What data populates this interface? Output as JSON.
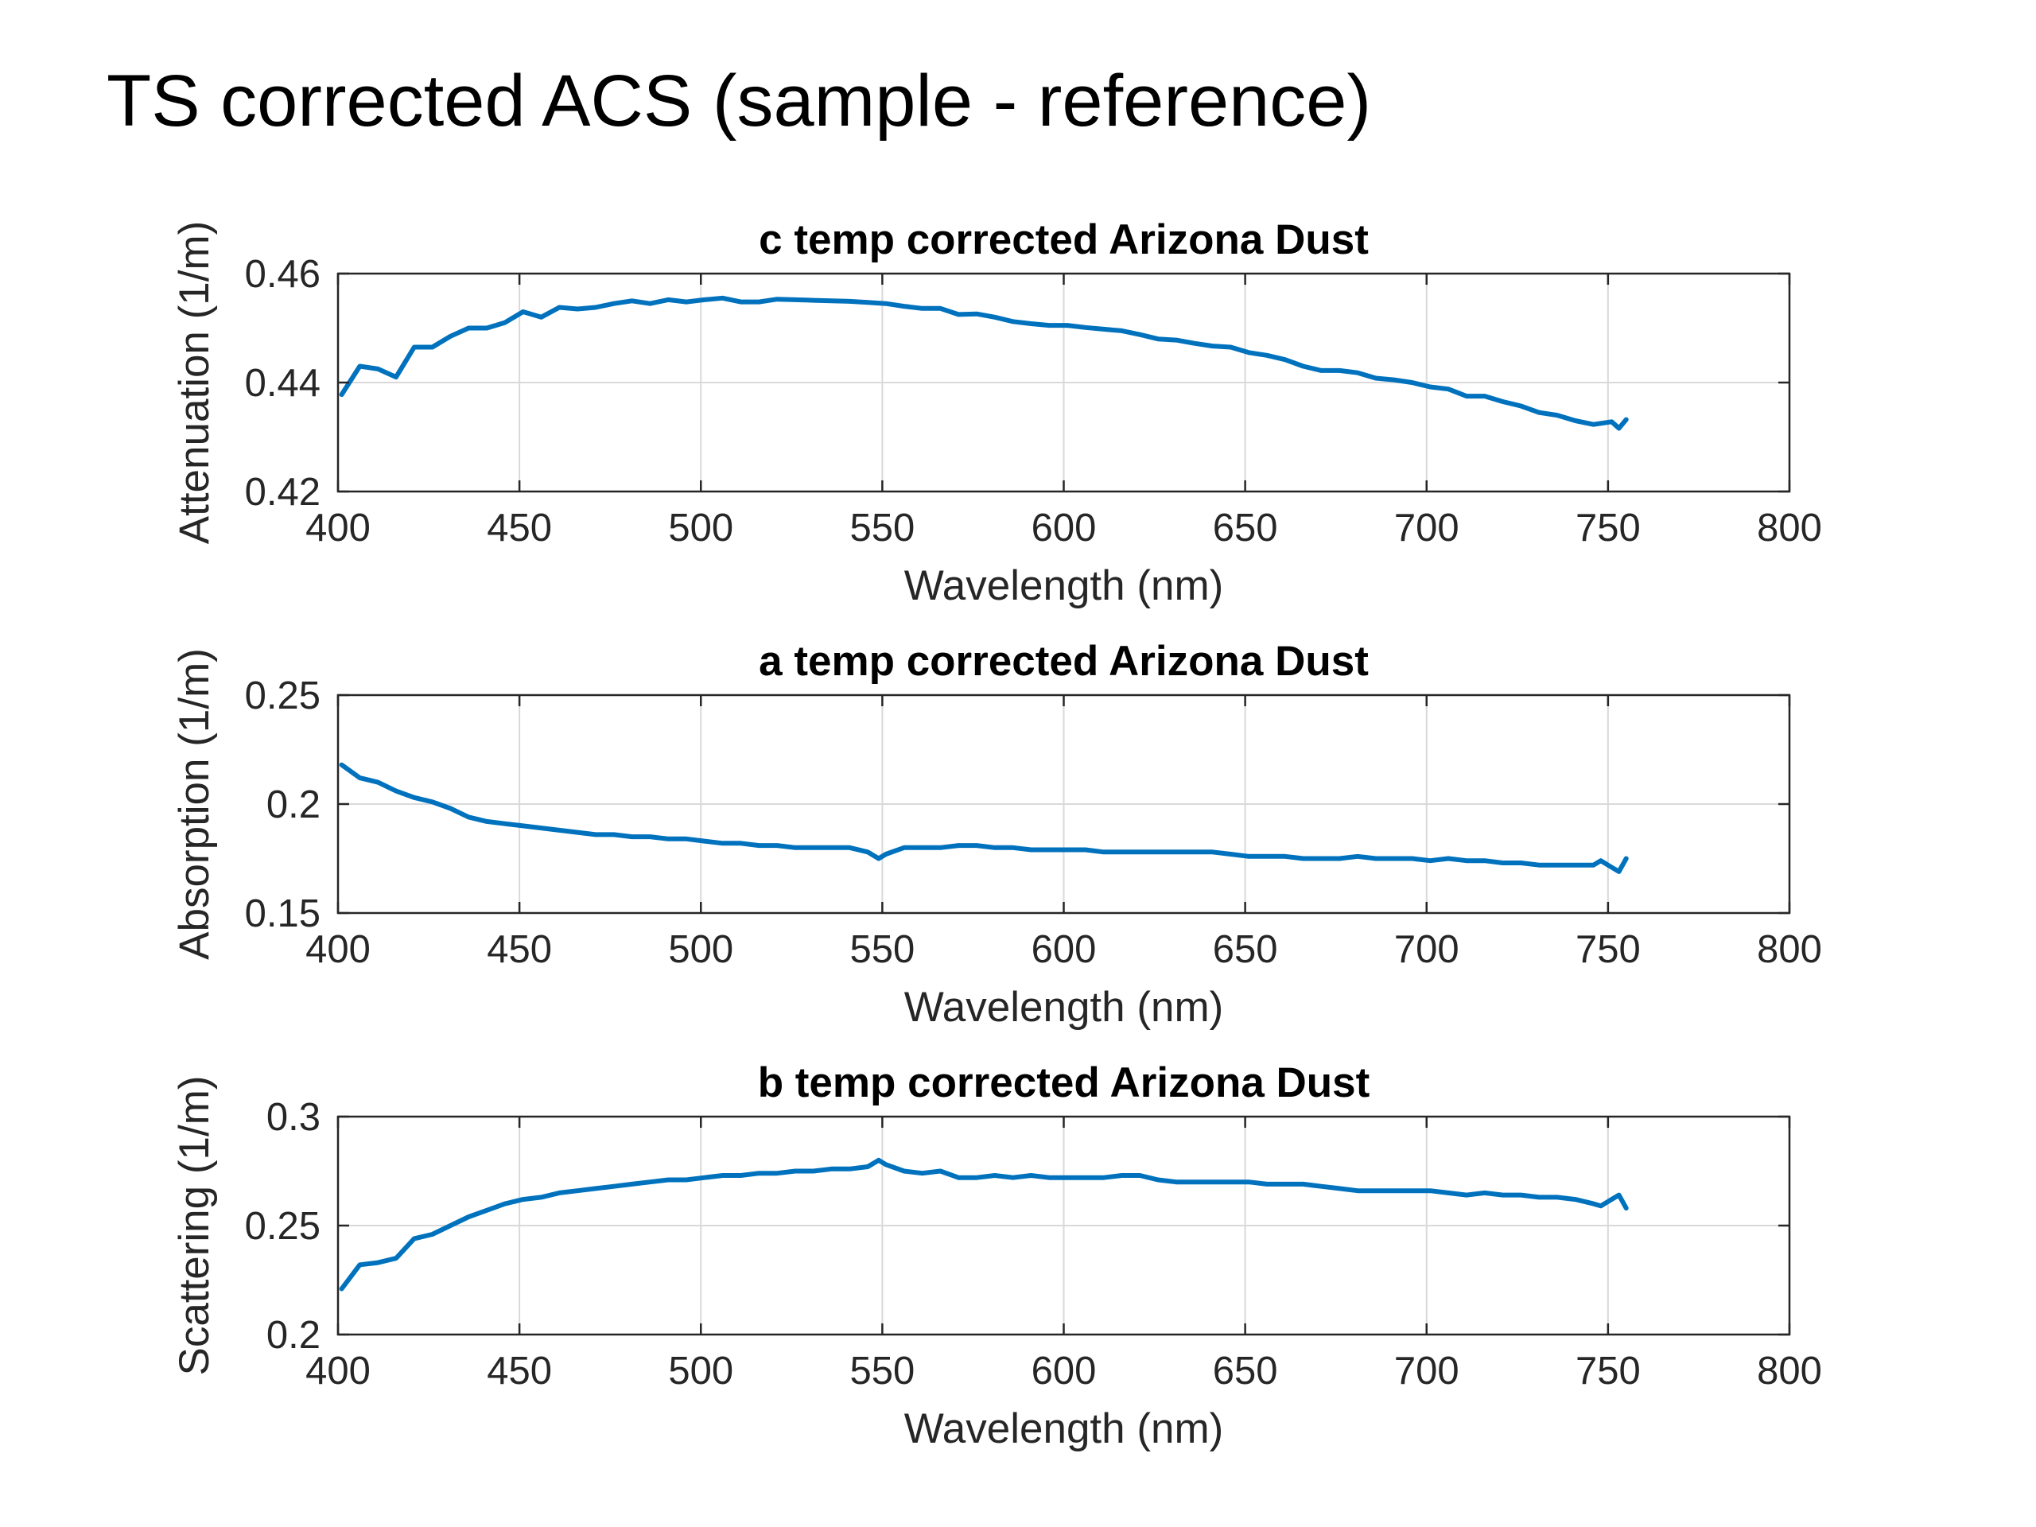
{
  "page": {
    "title": "TS corrected ACS (sample - reference)"
  },
  "chart_data": [
    {
      "type": "line",
      "title": "c temp corrected Arizona Dust",
      "xlabel": "Wavelength (nm)",
      "ylabel": "Attenuation (1/m)",
      "xlim": [
        400,
        800
      ],
      "ylim": [
        0.42,
        0.46
      ],
      "xticks": [
        400,
        450,
        500,
        550,
        600,
        650,
        700,
        750,
        800
      ],
      "xtick_labels": [
        "400",
        "450",
        "500",
        "550",
        "600",
        "650",
        "700",
        "750",
        "800"
      ],
      "yticks": [
        0.42,
        0.44,
        0.46
      ],
      "ytick_labels": [
        "0.42",
        "0.44",
        "0.46"
      ],
      "grid": true,
      "color": "#0072BD",
      "x": [
        401,
        406,
        411,
        416,
        421,
        426,
        431,
        436,
        441,
        446,
        451,
        456,
        461,
        466,
        471,
        476,
        481,
        486,
        491,
        496,
        501,
        506,
        511,
        516,
        521,
        526,
        531,
        536,
        541,
        546,
        551,
        556,
        561,
        566,
        571,
        576,
        581,
        586,
        591,
        596,
        601,
        606,
        611,
        616,
        621,
        626,
        631,
        636,
        641,
        646,
        651,
        656,
        661,
        666,
        671,
        676,
        681,
        686,
        691,
        696,
        701,
        706,
        711,
        716,
        721,
        726,
        731,
        736,
        741,
        746,
        751,
        753,
        755
      ],
      "y": [
        0.4378,
        0.443,
        0.4425,
        0.441,
        0.4465,
        0.4465,
        0.4485,
        0.45,
        0.45,
        0.451,
        0.453,
        0.452,
        0.4538,
        0.4535,
        0.4538,
        0.4545,
        0.455,
        0.4545,
        0.4552,
        0.4548,
        0.4552,
        0.4555,
        0.4548,
        0.4548,
        0.4553,
        0.4552,
        0.4551,
        0.455,
        0.4549,
        0.4547,
        0.4545,
        0.454,
        0.4536,
        0.4536,
        0.4525,
        0.4526,
        0.452,
        0.4512,
        0.4508,
        0.4505,
        0.4505,
        0.4501,
        0.4498,
        0.4495,
        0.4488,
        0.448,
        0.4478,
        0.4472,
        0.4467,
        0.4465,
        0.4455,
        0.445,
        0.4442,
        0.443,
        0.4422,
        0.4422,
        0.4418,
        0.4408,
        0.4405,
        0.44,
        0.4392,
        0.4388,
        0.4375,
        0.4375,
        0.4365,
        0.4357,
        0.4345,
        0.434,
        0.433,
        0.4323,
        0.4328,
        0.4316,
        0.4332
      ]
    },
    {
      "type": "line",
      "title": "a temp corrected Arizona Dust",
      "xlabel": "Wavelength (nm)",
      "ylabel": "Absorption (1/m)",
      "xlim": [
        400,
        800
      ],
      "ylim": [
        0.15,
        0.25
      ],
      "xticks": [
        400,
        450,
        500,
        550,
        600,
        650,
        700,
        750,
        800
      ],
      "xtick_labels": [
        "400",
        "450",
        "500",
        "550",
        "600",
        "650",
        "700",
        "750",
        "800"
      ],
      "yticks": [
        0.15,
        0.2,
        0.25
      ],
      "ytick_labels": [
        "0.15",
        "0.2",
        "0.25"
      ],
      "grid": true,
      "color": "#0072BD",
      "x": [
        401,
        406,
        411,
        416,
        421,
        426,
        431,
        436,
        441,
        446,
        451,
        456,
        461,
        466,
        471,
        476,
        481,
        486,
        491,
        496,
        501,
        506,
        511,
        516,
        521,
        526,
        531,
        536,
        541,
        546,
        549,
        551,
        556,
        561,
        566,
        571,
        576,
        581,
        586,
        591,
        596,
        601,
        606,
        611,
        616,
        621,
        626,
        631,
        636,
        641,
        646,
        651,
        656,
        661,
        666,
        671,
        676,
        681,
        686,
        691,
        696,
        701,
        706,
        711,
        716,
        721,
        726,
        731,
        736,
        741,
        746,
        748,
        751,
        753,
        755
      ],
      "y": [
        0.218,
        0.212,
        0.21,
        0.206,
        0.203,
        0.201,
        0.198,
        0.194,
        0.192,
        0.191,
        0.19,
        0.189,
        0.188,
        0.187,
        0.186,
        0.186,
        0.185,
        0.185,
        0.184,
        0.184,
        0.183,
        0.182,
        0.182,
        0.181,
        0.181,
        0.18,
        0.18,
        0.18,
        0.18,
        0.178,
        0.175,
        0.177,
        0.18,
        0.18,
        0.18,
        0.181,
        0.181,
        0.18,
        0.18,
        0.179,
        0.179,
        0.179,
        0.179,
        0.178,
        0.178,
        0.178,
        0.178,
        0.178,
        0.178,
        0.178,
        0.177,
        0.176,
        0.176,
        0.176,
        0.175,
        0.175,
        0.175,
        0.176,
        0.175,
        0.175,
        0.175,
        0.174,
        0.175,
        0.174,
        0.174,
        0.173,
        0.173,
        0.172,
        0.172,
        0.172,
        0.172,
        0.174,
        0.171,
        0.169,
        0.175
      ]
    },
    {
      "type": "line",
      "title": "b temp corrected Arizona Dust",
      "xlabel": "Wavelength (nm)",
      "ylabel": "Scattering (1/m)",
      "xlim": [
        400,
        800
      ],
      "ylim": [
        0.2,
        0.3
      ],
      "xticks": [
        400,
        450,
        500,
        550,
        600,
        650,
        700,
        750,
        800
      ],
      "xtick_labels": [
        "400",
        "450",
        "500",
        "550",
        "600",
        "650",
        "700",
        "750",
        "800"
      ],
      "yticks": [
        0.2,
        0.25,
        0.3
      ],
      "ytick_labels": [
        "0.2",
        "0.25",
        "0.3"
      ],
      "grid": true,
      "color": "#0072BD",
      "x": [
        401,
        406,
        411,
        416,
        421,
        426,
        431,
        436,
        441,
        446,
        451,
        456,
        461,
        466,
        471,
        476,
        481,
        486,
        491,
        496,
        501,
        506,
        511,
        516,
        521,
        526,
        531,
        536,
        541,
        546,
        549,
        551,
        556,
        561,
        566,
        571,
        576,
        581,
        586,
        591,
        596,
        601,
        606,
        611,
        616,
        621,
        626,
        631,
        636,
        641,
        646,
        651,
        656,
        661,
        666,
        671,
        676,
        681,
        686,
        691,
        696,
        701,
        706,
        711,
        716,
        721,
        726,
        731,
        736,
        741,
        746,
        748,
        751,
        753,
        755
      ],
      "y": [
        0.221,
        0.232,
        0.233,
        0.235,
        0.244,
        0.246,
        0.25,
        0.254,
        0.257,
        0.26,
        0.262,
        0.263,
        0.265,
        0.266,
        0.267,
        0.268,
        0.269,
        0.27,
        0.271,
        0.271,
        0.272,
        0.273,
        0.273,
        0.274,
        0.274,
        0.275,
        0.275,
        0.276,
        0.276,
        0.277,
        0.28,
        0.278,
        0.275,
        0.274,
        0.275,
        0.272,
        0.272,
        0.273,
        0.272,
        0.273,
        0.272,
        0.272,
        0.272,
        0.272,
        0.273,
        0.273,
        0.271,
        0.27,
        0.27,
        0.27,
        0.27,
        0.27,
        0.269,
        0.269,
        0.269,
        0.268,
        0.267,
        0.266,
        0.266,
        0.266,
        0.266,
        0.266,
        0.265,
        0.264,
        0.265,
        0.264,
        0.264,
        0.263,
        0.263,
        0.262,
        0.26,
        0.259,
        0.262,
        0.264,
        0.258
      ]
    }
  ]
}
